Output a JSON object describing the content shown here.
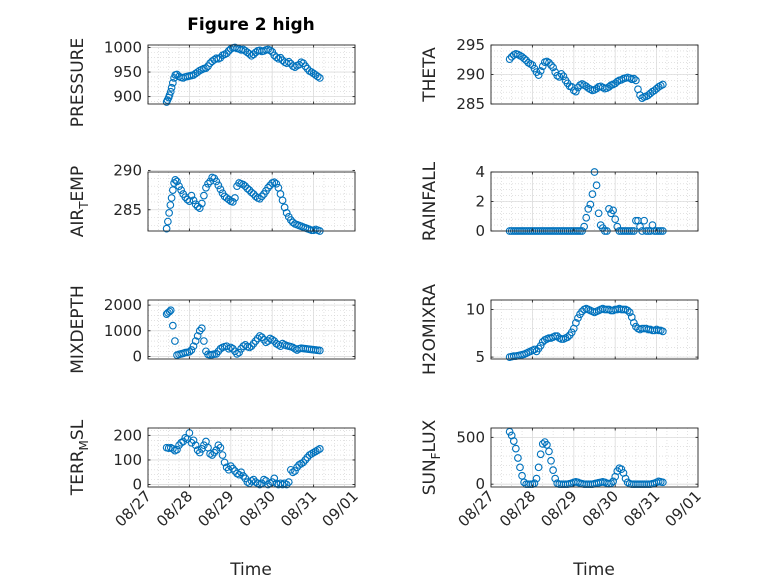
{
  "figure": {
    "title": "Figure 2 high",
    "xlabel": "Time",
    "marker_color": "#0072bd",
    "x_ticks": [
      "08/27",
      "08/28",
      "08/29",
      "08/30",
      "08/31",
      "09/01"
    ]
  },
  "chart_data": [
    {
      "type": "scatter",
      "ylabel": "PRESSURE",
      "title": "Figure 2 high",
      "xlim": [
        "08/27",
        "09/01"
      ],
      "ylim": [
        885,
        1005
      ],
      "yticks": [
        "900",
        "950",
        "1000"
      ],
      "grid": true,
      "x": [
        27.45,
        27.47,
        27.5,
        27.52,
        27.55,
        27.57,
        27.6,
        27.63,
        27.66,
        27.7,
        27.75,
        27.8,
        27.85,
        27.9,
        27.95,
        28.0,
        28.05,
        28.1,
        28.15,
        28.2,
        28.25,
        28.3,
        28.35,
        28.4,
        28.45,
        28.5,
        28.55,
        28.6,
        28.65,
        28.7,
        28.75,
        28.8,
        28.85,
        28.9,
        28.95,
        29.0,
        29.05,
        29.1,
        29.15,
        29.2,
        29.25,
        29.3,
        29.35,
        29.4,
        29.45,
        29.5,
        29.55,
        29.6,
        29.65,
        29.7,
        29.75,
        29.8,
        29.85,
        29.9,
        29.95,
        30.0,
        30.05,
        30.1,
        30.15,
        30.2,
        30.25,
        30.3,
        30.35,
        30.4,
        30.45,
        30.5,
        30.55,
        30.6,
        30.65,
        30.7,
        30.75,
        30.8,
        30.85,
        30.9,
        30.95,
        31.0,
        31.05,
        31.1,
        31.15
      ],
      "y": [
        889,
        893,
        898,
        903,
        910,
        918,
        928,
        938,
        944,
        945,
        941,
        939,
        938,
        940,
        941,
        942,
        943,
        944,
        947,
        950,
        953,
        955,
        957,
        958,
        962,
        968,
        972,
        975,
        978,
        977,
        979,
        984,
        986,
        988,
        993,
        997,
        999,
        1000,
        998,
        997,
        995,
        996,
        993,
        990,
        987,
        983,
        986,
        990,
        993,
        994,
        992,
        993,
        995,
        996,
        994,
        991,
        984,
        980,
        977,
        979,
        974,
        970,
        968,
        971,
        967,
        962,
        960,
        963,
        965,
        970,
        968,
        962,
        957,
        952,
        950,
        947,
        944,
        941,
        938
      ]
    },
    {
      "type": "scatter",
      "ylabel": "THETA",
      "xlim": [
        "08/27",
        "09/01"
      ],
      "ylim": [
        285,
        295
      ],
      "yticks": [
        "285",
        "290",
        "295"
      ],
      "grid": true,
      "x": [
        27.45,
        27.5,
        27.55,
        27.6,
        27.65,
        27.7,
        27.75,
        27.8,
        27.85,
        27.9,
        27.95,
        28.0,
        28.05,
        28.1,
        28.15,
        28.2,
        28.25,
        28.3,
        28.35,
        28.4,
        28.45,
        28.5,
        28.55,
        28.6,
        28.65,
        28.7,
        28.75,
        28.8,
        28.85,
        28.9,
        28.95,
        29.0,
        29.05,
        29.1,
        29.15,
        29.2,
        29.25,
        29.3,
        29.35,
        29.4,
        29.45,
        29.5,
        29.55,
        29.6,
        29.65,
        29.7,
        29.75,
        29.8,
        29.85,
        29.9,
        29.95,
        30.0,
        30.05,
        30.1,
        30.15,
        30.2,
        30.25,
        30.3,
        30.35,
        30.4,
        30.45,
        30.5,
        30.55,
        30.6,
        30.65,
        30.7,
        30.75,
        30.8,
        30.85,
        30.9,
        30.95,
        31.0,
        31.05,
        31.1,
        31.15
      ],
      "y": [
        292.6,
        293.0,
        293.3,
        293.5,
        293.4,
        293.2,
        293.0,
        292.7,
        292.4,
        292.0,
        291.8,
        291.6,
        291.0,
        290.4,
        289.9,
        290.6,
        291.4,
        292.1,
        292.2,
        292.0,
        291.6,
        291.2,
        290.4,
        289.8,
        289.6,
        290.1,
        289.7,
        289.0,
        288.5,
        288.0,
        287.9,
        287.3,
        287.1,
        287.8,
        288.2,
        288.4,
        288.2,
        288.0,
        287.7,
        287.5,
        287.3,
        287.4,
        287.6,
        287.9,
        288.0,
        287.8,
        287.6,
        287.7,
        287.9,
        288.2,
        288.3,
        288.5,
        288.8,
        289.0,
        289.1,
        289.3,
        289.4,
        289.5,
        289.4,
        289.2,
        289.3,
        289.0,
        287.5,
        286.5,
        286.0,
        286.2,
        286.3,
        286.5,
        286.8,
        287.1,
        287.3,
        287.6,
        287.9,
        288.1,
        288.3
      ]
    },
    {
      "type": "scatter",
      "ylabel": "AIR_TEMP",
      "xlim": [
        "08/27",
        "09/01"
      ],
      "ylim": [
        282.3,
        289.8
      ],
      "yticks": [
        "285",
        "290"
      ],
      "grid": true,
      "x": [
        27.45,
        27.48,
        27.51,
        27.54,
        27.57,
        27.6,
        27.63,
        27.66,
        27.7,
        27.75,
        27.8,
        27.85,
        27.9,
        27.95,
        28.0,
        28.05,
        28.1,
        28.15,
        28.2,
        28.25,
        28.3,
        28.35,
        28.4,
        28.45,
        28.5,
        28.55,
        28.6,
        28.65,
        28.7,
        28.75,
        28.8,
        28.85,
        28.9,
        28.95,
        29.0,
        29.05,
        29.1,
        29.15,
        29.2,
        29.25,
        29.3,
        29.35,
        29.4,
        29.45,
        29.5,
        29.55,
        29.6,
        29.65,
        29.7,
        29.75,
        29.8,
        29.85,
        29.9,
        29.95,
        30.0,
        30.05,
        30.1,
        30.15,
        30.2,
        30.25,
        30.3,
        30.35,
        30.4,
        30.45,
        30.5,
        30.55,
        30.6,
        30.65,
        30.7,
        30.75,
        30.8,
        30.85,
        30.9,
        30.95,
        31.0,
        31.05,
        31.1,
        31.15
      ],
      "y": [
        282.6,
        283.5,
        284.6,
        285.6,
        286.5,
        287.5,
        288.4,
        288.8,
        288.6,
        288.0,
        287.5,
        287.0,
        286.6,
        286.3,
        286.1,
        286.8,
        286.2,
        285.7,
        285.4,
        285.2,
        285.8,
        286.8,
        287.8,
        288.3,
        288.6,
        289.1,
        289.0,
        288.6,
        288.1,
        287.6,
        287.1,
        286.7,
        286.5,
        286.3,
        286.1,
        286.0,
        286.5,
        288.0,
        288.4,
        288.3,
        288.2,
        288.0,
        287.7,
        287.5,
        287.2,
        287.0,
        286.7,
        286.5,
        286.4,
        286.7,
        287.0,
        287.4,
        287.8,
        288.1,
        288.4,
        288.5,
        288.3,
        287.8,
        287.0,
        286.2,
        285.3,
        284.6,
        284.1,
        283.7,
        283.4,
        283.2,
        283.1,
        283.0,
        282.9,
        282.8,
        282.7,
        282.6,
        282.5,
        282.4,
        282.4,
        282.5,
        282.4,
        282.3
      ]
    },
    {
      "type": "scatter",
      "ylabel": "RAINFALL",
      "xlim": [
        "08/27",
        "09/01"
      ],
      "ylim": [
        0,
        4
      ],
      "yticks": [
        "0",
        "2",
        "4"
      ],
      "grid": true,
      "x": [
        27.45,
        27.5,
        27.55,
        27.6,
        27.65,
        27.7,
        27.75,
        27.8,
        27.85,
        27.9,
        27.95,
        28.0,
        28.05,
        28.1,
        28.15,
        28.2,
        28.25,
        28.3,
        28.35,
        28.4,
        28.45,
        28.5,
        28.55,
        28.6,
        28.65,
        28.7,
        28.75,
        28.8,
        28.85,
        28.9,
        28.95,
        29.0,
        29.05,
        29.1,
        29.15,
        29.2,
        29.25,
        29.3,
        29.35,
        29.4,
        29.45,
        29.5,
        29.55,
        29.6,
        29.65,
        29.7,
        29.75,
        29.8,
        29.85,
        29.9,
        29.95,
        30.0,
        30.05,
        30.1,
        30.15,
        30.2,
        30.25,
        30.3,
        30.35,
        30.4,
        30.45,
        30.5,
        30.55,
        30.6,
        30.65,
        30.7,
        30.75,
        30.8,
        30.85,
        30.9,
        30.95,
        31.0,
        31.05,
        31.1,
        31.15
      ],
      "y": [
        0,
        0,
        0,
        0,
        0,
        0,
        0,
        0,
        0,
        0,
        0,
        0,
        0,
        0,
        0,
        0,
        0,
        0,
        0,
        0,
        0,
        0,
        0,
        0,
        0,
        0,
        0,
        0,
        0,
        0,
        0,
        0,
        0,
        0,
        0,
        0,
        0.3,
        0.9,
        1.5,
        1.8,
        2.5,
        4.0,
        3.1,
        1.2,
        0.4,
        0.2,
        0,
        0,
        1.5,
        1.2,
        1.4,
        0.8,
        0.3,
        0,
        0,
        0,
        0,
        0,
        0,
        0,
        0,
        0.7,
        0.7,
        0.3,
        0,
        0.7,
        0,
        0,
        0,
        0.4,
        0,
        0,
        0,
        0,
        0
      ]
    },
    {
      "type": "scatter",
      "ylabel": "MIXDEPTH",
      "xlim": [
        "08/27",
        "09/01"
      ],
      "ylim": [
        -100,
        2200
      ],
      "yticks": [
        "0",
        "1000",
        "2000"
      ],
      "grid": true,
      "x": [
        27.45,
        27.48,
        27.52,
        27.55,
        27.6,
        27.65,
        27.7,
        27.75,
        27.8,
        27.85,
        27.9,
        27.95,
        28.0,
        28.05,
        28.1,
        28.15,
        28.2,
        28.25,
        28.3,
        28.35,
        28.4,
        28.45,
        28.5,
        28.55,
        28.6,
        28.65,
        28.7,
        28.75,
        28.8,
        28.85,
        28.9,
        28.95,
        29.0,
        29.05,
        29.1,
        29.15,
        29.2,
        29.25,
        29.3,
        29.35,
        29.4,
        29.45,
        29.5,
        29.55,
        29.6,
        29.65,
        29.7,
        29.75,
        29.8,
        29.85,
        29.9,
        29.95,
        30.0,
        30.05,
        30.1,
        30.15,
        30.2,
        30.25,
        30.3,
        30.35,
        30.4,
        30.45,
        30.5,
        30.55,
        30.6,
        30.65,
        30.7,
        30.75,
        30.8,
        30.85,
        30.9,
        30.95,
        31.0,
        31.05,
        31.1,
        31.15
      ],
      "y": [
        1650,
        1700,
        1750,
        1800,
        1200,
        600,
        50,
        80,
        100,
        120,
        150,
        160,
        180,
        250,
        400,
        600,
        800,
        1000,
        1100,
        600,
        200,
        80,
        60,
        70,
        90,
        100,
        200,
        300,
        350,
        380,
        400,
        300,
        350,
        300,
        200,
        100,
        150,
        300,
        400,
        450,
        380,
        350,
        400,
        500,
        600,
        700,
        800,
        750,
        650,
        550,
        600,
        700,
        650,
        600,
        500,
        450,
        400,
        500,
        450,
        420,
        400,
        380,
        350,
        300,
        250,
        300,
        320,
        310,
        300,
        290,
        280,
        270,
        260,
        250,
        240,
        230
      ]
    },
    {
      "type": "scatter",
      "ylabel": "H2OMIXRA",
      "xlim": [
        "08/27",
        "09/01"
      ],
      "ylim": [
        4.8,
        11
      ],
      "yticks": [
        "5",
        "10"
      ],
      "grid": true,
      "x": [
        27.45,
        27.5,
        27.55,
        27.6,
        27.65,
        27.7,
        27.75,
        27.8,
        27.85,
        27.9,
        27.95,
        28.0,
        28.05,
        28.1,
        28.15,
        28.2,
        28.25,
        28.3,
        28.35,
        28.4,
        28.45,
        28.5,
        28.55,
        28.6,
        28.65,
        28.7,
        28.75,
        28.8,
        28.85,
        28.9,
        28.95,
        29.0,
        29.05,
        29.1,
        29.15,
        29.2,
        29.25,
        29.3,
        29.35,
        29.4,
        29.45,
        29.5,
        29.55,
        29.6,
        29.65,
        29.7,
        29.75,
        29.8,
        29.85,
        29.9,
        29.95,
        30.0,
        30.05,
        30.1,
        30.15,
        30.2,
        30.25,
        30.3,
        30.35,
        30.4,
        30.45,
        30.5,
        30.55,
        30.6,
        30.65,
        30.7,
        30.75,
        30.8,
        30.85,
        30.9,
        30.95,
        31.0,
        31.05,
        31.1,
        31.15
      ],
      "y": [
        5.0,
        5.05,
        5.1,
        5.1,
        5.15,
        5.2,
        5.25,
        5.3,
        5.4,
        5.5,
        5.6,
        5.7,
        5.8,
        5.6,
        5.9,
        6.2,
        6.6,
        6.8,
        6.9,
        7.0,
        7.0,
        7.1,
        7.2,
        7.2,
        7.0,
        6.9,
        6.9,
        7.0,
        7.1,
        7.3,
        7.6,
        8.0,
        8.6,
        9.1,
        9.5,
        9.8,
        10.0,
        10.1,
        10.0,
        9.9,
        9.8,
        9.7,
        9.8,
        9.9,
        10.0,
        10.1,
        10.0,
        10.0,
        10.0,
        9.9,
        9.9,
        10.0,
        10.0,
        10.1,
        10.0,
        10.0,
        10.0,
        9.9,
        9.7,
        9.2,
        8.6,
        8.2,
        8.0,
        7.9,
        8.0,
        8.0,
        8.0,
        7.9,
        7.9,
        7.8,
        7.8,
        7.9,
        7.8,
        7.8,
        7.7
      ]
    },
    {
      "type": "scatter",
      "ylabel": "TERR_MSL",
      "xlim": [
        "08/27",
        "09/01"
      ],
      "ylim": [
        -10,
        230
      ],
      "yticks": [
        "0",
        "100",
        "200"
      ],
      "grid": true,
      "x": [
        27.45,
        27.5,
        27.55,
        27.6,
        27.65,
        27.7,
        27.75,
        27.8,
        27.85,
        27.9,
        27.95,
        28.0,
        28.05,
        28.1,
        28.15,
        28.2,
        28.25,
        28.3,
        28.35,
        28.4,
        28.45,
        28.5,
        28.55,
        28.6,
        28.65,
        28.7,
        28.75,
        28.8,
        28.85,
        28.9,
        28.95,
        29.0,
        29.05,
        29.1,
        29.15,
        29.2,
        29.25,
        29.3,
        29.35,
        29.4,
        29.45,
        29.5,
        29.55,
        29.6,
        29.65,
        29.7,
        29.75,
        29.8,
        29.85,
        29.9,
        29.95,
        30.0,
        30.05,
        30.1,
        30.15,
        30.2,
        30.25,
        30.3,
        30.35,
        30.4,
        30.45,
        30.5,
        30.55,
        30.6,
        30.65,
        30.7,
        30.75,
        30.8,
        30.85,
        30.9,
        30.95,
        31.0,
        31.05,
        31.1,
        31.15
      ],
      "y": [
        150,
        148,
        150,
        145,
        138,
        142,
        160,
        170,
        175,
        190,
        185,
        210,
        170,
        180,
        160,
        140,
        130,
        145,
        160,
        175,
        150,
        125,
        120,
        130,
        140,
        160,
        150,
        120,
        90,
        70,
        60,
        75,
        65,
        55,
        45,
        40,
        50,
        35,
        25,
        10,
        5,
        15,
        20,
        10,
        5,
        0,
        5,
        20,
        15,
        0,
        5,
        10,
        25,
        5,
        0,
        5,
        0,
        5,
        0,
        10,
        60,
        50,
        55,
        70,
        80,
        85,
        90,
        100,
        110,
        120,
        125,
        130,
        135,
        140,
        145
      ]
    },
    {
      "type": "scatter",
      "ylabel": "SUN_FLUX",
      "xlim": [
        "08/27",
        "09/01"
      ],
      "ylim": [
        -30,
        600
      ],
      "yticks": [
        "0",
        "500"
      ],
      "grid": true,
      "x": [
        27.45,
        27.5,
        27.55,
        27.6,
        27.65,
        27.7,
        27.75,
        27.8,
        27.85,
        27.9,
        27.95,
        28.0,
        28.05,
        28.1,
        28.15,
        28.2,
        28.25,
        28.3,
        28.35,
        28.4,
        28.45,
        28.5,
        28.55,
        28.6,
        28.65,
        28.7,
        28.75,
        28.8,
        28.85,
        28.9,
        28.95,
        29.0,
        29.05,
        29.1,
        29.15,
        29.2,
        29.25,
        29.3,
        29.35,
        29.4,
        29.45,
        29.5,
        29.55,
        29.6,
        29.65,
        29.7,
        29.75,
        29.8,
        29.85,
        29.9,
        29.95,
        30.0,
        30.05,
        30.1,
        30.15,
        30.2,
        30.25,
        30.3,
        30.35,
        30.4,
        30.45,
        30.5,
        30.55,
        30.6,
        30.65,
        30.7,
        30.75,
        30.8,
        30.85,
        30.9,
        30.95,
        31.0,
        31.05,
        31.1,
        31.15
      ],
      "y": [
        560,
        520,
        460,
        380,
        280,
        180,
        90,
        20,
        0,
        0,
        0,
        0,
        10,
        60,
        180,
        320,
        430,
        450,
        420,
        350,
        250,
        150,
        60,
        10,
        0,
        0,
        0,
        0,
        0,
        5,
        10,
        20,
        25,
        20,
        10,
        5,
        0,
        0,
        0,
        0,
        0,
        5,
        10,
        15,
        20,
        25,
        20,
        10,
        5,
        10,
        30,
        80,
        140,
        170,
        160,
        120,
        60,
        20,
        5,
        0,
        0,
        0,
        0,
        0,
        0,
        0,
        0,
        0,
        0,
        5,
        10,
        20,
        30,
        25,
        20
      ]
    }
  ]
}
